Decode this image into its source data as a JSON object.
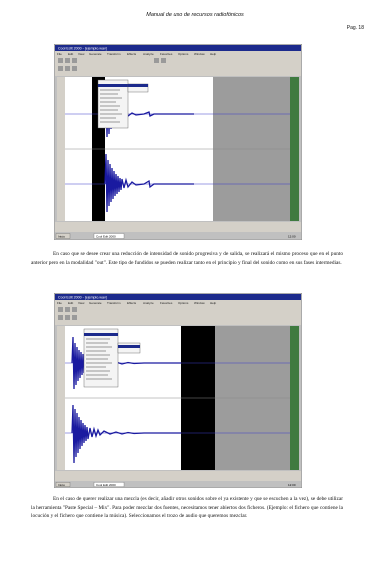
{
  "header": {
    "title": "Manual de uso de recursos radiofónicos",
    "page": "Pag. 18"
  },
  "screenshots": [
    {
      "window_title": "Cool Edit 2000 - [ejemplo.wav]",
      "menu": [
        "File",
        "Edit",
        "View",
        "Generate",
        "Transform",
        "Effects",
        "Analyze",
        "Favorites",
        "Options",
        "Window",
        "Help"
      ],
      "taskbar": [
        "Inicio",
        "Cool Edit 2000"
      ],
      "clock": "12:00"
    },
    {
      "window_title": "Cool Edit 2000 - [ejemplo.wav]",
      "menu": [
        "File",
        "Edit",
        "View",
        "Generate",
        "Transform",
        "Effects",
        "Analyze",
        "Favorites",
        "Options",
        "Window",
        "Help"
      ],
      "taskbar": [
        "Inicio",
        "Cool Edit 2000"
      ],
      "clock": "12:00"
    }
  ],
  "paragraph1": "En caso que se desee crear una reducción de intensidad de sonido progresiva y de salida, se realizará el mismo proceso que en el punto anterior pero en la modalidad \"out\". Este tipo de fundidos se pueden realizar tanto en el principio y final del sonido como en sus fases intermedias.",
  "paragraph2": "En el caso de querer realizar una mezcla (es decir, añadir otros sonidos sobre el ya existente y que se escuchen a la vez), se debe utilizar la herramienta \"Paste Special – Mix\". Para poder mezclar dos fuentes, necesitamos tener abiertos dos ficheros. (Ejemplo: el fichero que contiene la locución y el fichero que contiene la música). Seleccionamos el trozo de audio que queremos mezclar."
}
